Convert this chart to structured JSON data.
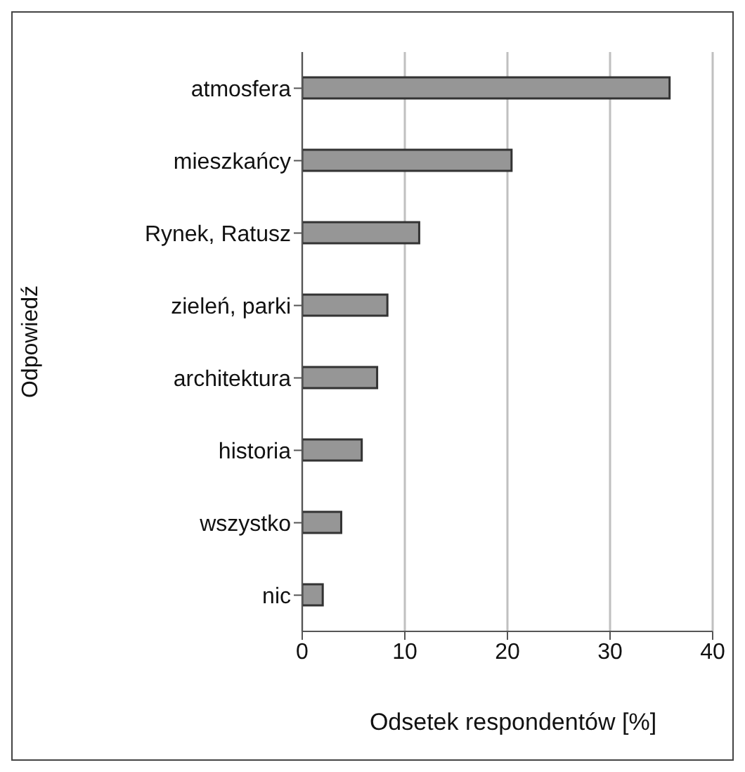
{
  "chart_data": {
    "type": "bar",
    "orientation": "horizontal",
    "xlabel": "Odsetek respondentów [%]",
    "ylabel": "Odpowiedź",
    "categories": [
      "atmosfera",
      "mieszkańcy",
      "Rynek, Ratusz",
      "zieleń, parki",
      "architektura",
      "historia",
      "wszystko",
      "nic"
    ],
    "values": [
      35.8,
      20.4,
      11.4,
      8.3,
      7.3,
      5.8,
      3.8,
      2.0
    ],
    "color": "#969696",
    "xlim": [
      0,
      40
    ],
    "xticks": [
      0,
      10,
      20,
      30,
      40
    ],
    "grid": "x"
  }
}
